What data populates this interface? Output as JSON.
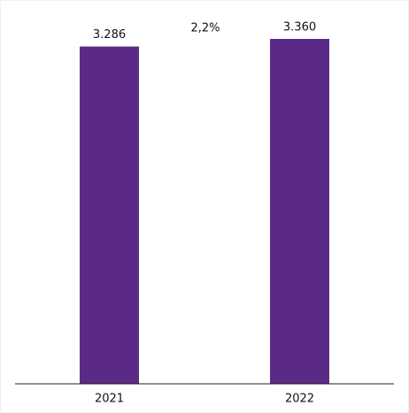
{
  "chart_data": {
    "type": "bar",
    "categories": [
      "2021",
      "2022"
    ],
    "values": [
      3286,
      3360
    ],
    "value_labels": [
      "3.286",
      "3.360"
    ],
    "annotation": "2,2%",
    "color": "#5b2a86"
  }
}
